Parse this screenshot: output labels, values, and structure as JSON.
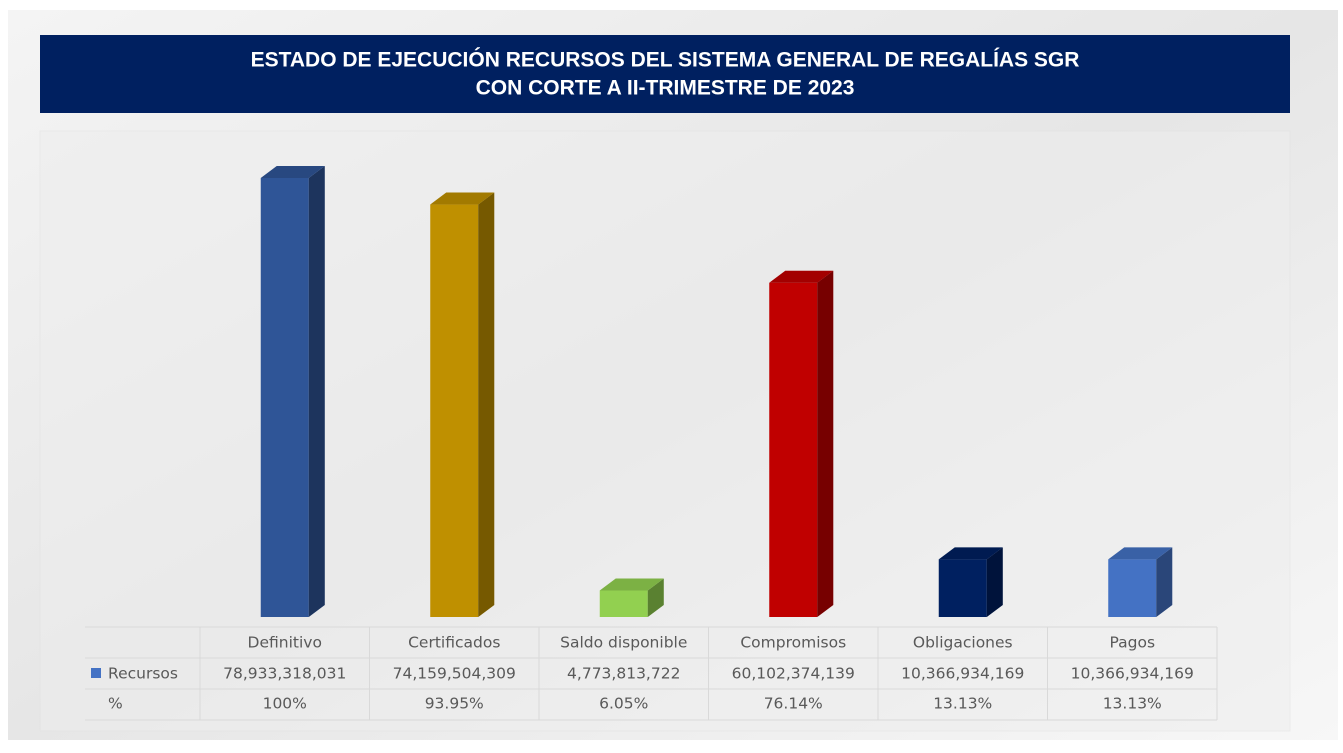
{
  "chart_data": {
    "type": "bar3d",
    "title": [
      "ESTADO DE EJECUCIÓN RECURSOS DEL SISTEMA GENERAL DE REGALÍAS SGR",
      "CON CORTE A  II-TRIMESTRE DE 2023"
    ],
    "categories": [
      "Definitivo",
      "Certificados",
      "Saldo disponible",
      "Compromisos",
      "Obligaciones",
      "Pagos"
    ],
    "series": [
      {
        "name": "Recursos",
        "color": "#4472c4",
        "colors": [
          "#2f5597",
          "#bf9000",
          "#92d050",
          "#c00000",
          "#002060",
          "#4472c4"
        ],
        "values": [
          78933318031,
          74159504309,
          4773813722,
          60102374139,
          10366934169,
          10366934169
        ],
        "value_labels": [
          "78,933,318,031",
          "74,159,504,309",
          "4,773,813,722",
          "60,102,374,139",
          "10,366,934,169",
          "10,366,934,169"
        ]
      },
      {
        "name": "%",
        "values": [
          100,
          93.95,
          6.05,
          76.14,
          13.13,
          13.13
        ],
        "value_labels": [
          "100%",
          "93.95%",
          "6.05%",
          "76.14%",
          "13.13%",
          "13.13%"
        ]
      }
    ]
  }
}
